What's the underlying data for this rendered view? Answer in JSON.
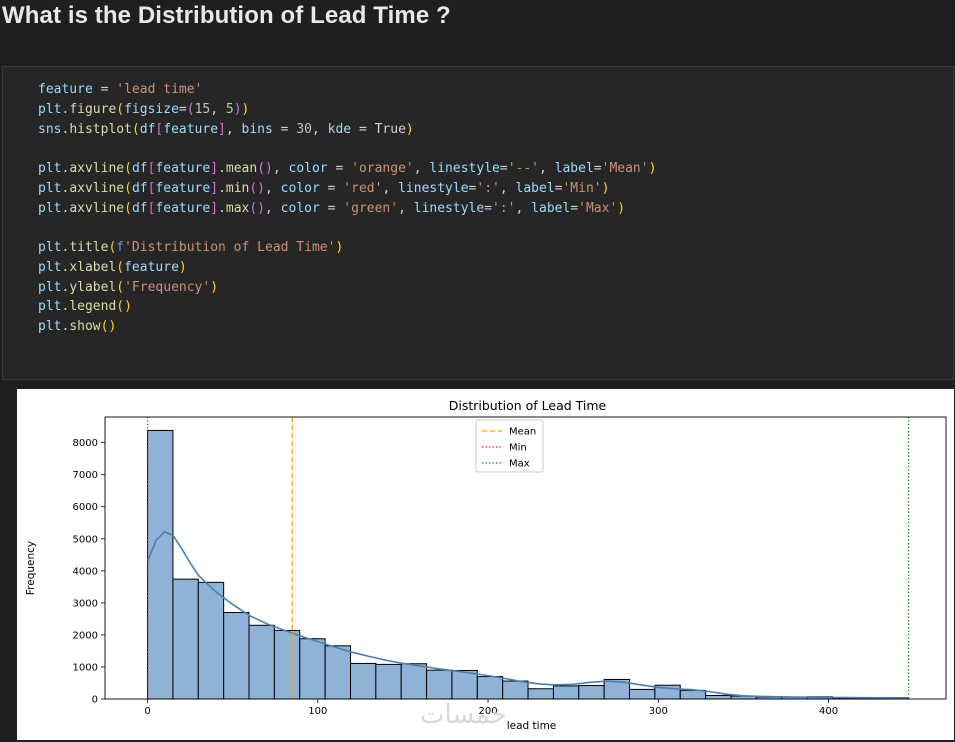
{
  "page": {
    "heading": "What is the Distribution of Lead Time ?",
    "watermark": "خمسات"
  },
  "code_lines": [
    [
      {
        "t": "feature ",
        "c": "#9cdcfe"
      },
      {
        "t": "= ",
        "c": "#d4d4d4"
      },
      {
        "t": "'lead time'",
        "c": "#ce9178"
      }
    ],
    [
      {
        "t": "plt",
        "c": "#9cdcfe"
      },
      {
        "t": ".",
        "c": "#d4d4d4"
      },
      {
        "t": "figure",
        "c": "#dcdcaa"
      },
      {
        "t": "(",
        "c": "#ffd700"
      },
      {
        "t": "figsize",
        "c": "#9cdcfe"
      },
      {
        "t": "=",
        "c": "#d4d4d4"
      },
      {
        "t": "(",
        "c": "#da70d6"
      },
      {
        "t": "15",
        "c": "#b5cea8"
      },
      {
        "t": ", ",
        "c": "#d4d4d4"
      },
      {
        "t": "5",
        "c": "#b5cea8"
      },
      {
        "t": ")",
        "c": "#da70d6"
      },
      {
        "t": ")",
        "c": "#ffd700"
      }
    ],
    [
      {
        "t": "sns",
        "c": "#9cdcfe"
      },
      {
        "t": ".",
        "c": "#d4d4d4"
      },
      {
        "t": "histplot",
        "c": "#dcdcaa"
      },
      {
        "t": "(",
        "c": "#ffd700"
      },
      {
        "t": "df",
        "c": "#9cdcfe"
      },
      {
        "t": "[",
        "c": "#da70d6"
      },
      {
        "t": "feature",
        "c": "#9cdcfe"
      },
      {
        "t": "]",
        "c": "#da70d6"
      },
      {
        "t": ", ",
        "c": "#d4d4d4"
      },
      {
        "t": "bins ",
        "c": "#9cdcfe"
      },
      {
        "t": "= ",
        "c": "#d4d4d4"
      },
      {
        "t": "30",
        "c": "#b5cea8"
      },
      {
        "t": ", ",
        "c": "#d4d4d4"
      },
      {
        "t": "kde ",
        "c": "#9cdcfe"
      },
      {
        "t": "= ",
        "c": "#d4d4d4"
      },
      {
        "t": "True",
        "c": "#d4d4d4"
      },
      {
        "t": ")",
        "c": "#ffd700"
      }
    ],
    [],
    [
      {
        "t": "plt",
        "c": "#9cdcfe"
      },
      {
        "t": ".",
        "c": "#d4d4d4"
      },
      {
        "t": "axvline",
        "c": "#dcdcaa"
      },
      {
        "t": "(",
        "c": "#ffd700"
      },
      {
        "t": "df",
        "c": "#9cdcfe"
      },
      {
        "t": "[",
        "c": "#da70d6"
      },
      {
        "t": "feature",
        "c": "#9cdcfe"
      },
      {
        "t": "]",
        "c": "#da70d6"
      },
      {
        "t": ".",
        "c": "#d4d4d4"
      },
      {
        "t": "mean",
        "c": "#dcdcaa"
      },
      {
        "t": "()",
        "c": "#da70d6"
      },
      {
        "t": ", ",
        "c": "#d4d4d4"
      },
      {
        "t": "color ",
        "c": "#9cdcfe"
      },
      {
        "t": "= ",
        "c": "#d4d4d4"
      },
      {
        "t": "'orange'",
        "c": "#ce9178"
      },
      {
        "t": ", ",
        "c": "#d4d4d4"
      },
      {
        "t": "linestyle",
        "c": "#9cdcfe"
      },
      {
        "t": "=",
        "c": "#d4d4d4"
      },
      {
        "t": "'--'",
        "c": "#ce9178"
      },
      {
        "t": ", ",
        "c": "#d4d4d4"
      },
      {
        "t": "label",
        "c": "#9cdcfe"
      },
      {
        "t": "=",
        "c": "#d4d4d4"
      },
      {
        "t": "'Mean'",
        "c": "#ce9178"
      },
      {
        "t": ")",
        "c": "#ffd700"
      }
    ],
    [
      {
        "t": "plt",
        "c": "#9cdcfe"
      },
      {
        "t": ".",
        "c": "#d4d4d4"
      },
      {
        "t": "axvline",
        "c": "#dcdcaa"
      },
      {
        "t": "(",
        "c": "#ffd700"
      },
      {
        "t": "df",
        "c": "#9cdcfe"
      },
      {
        "t": "[",
        "c": "#da70d6"
      },
      {
        "t": "feature",
        "c": "#9cdcfe"
      },
      {
        "t": "]",
        "c": "#da70d6"
      },
      {
        "t": ".",
        "c": "#d4d4d4"
      },
      {
        "t": "min",
        "c": "#dcdcaa"
      },
      {
        "t": "()",
        "c": "#da70d6"
      },
      {
        "t": ", ",
        "c": "#d4d4d4"
      },
      {
        "t": "color ",
        "c": "#9cdcfe"
      },
      {
        "t": "= ",
        "c": "#d4d4d4"
      },
      {
        "t": "'red'",
        "c": "#ce9178"
      },
      {
        "t": ", ",
        "c": "#d4d4d4"
      },
      {
        "t": "linestyle",
        "c": "#9cdcfe"
      },
      {
        "t": "=",
        "c": "#d4d4d4"
      },
      {
        "t": "':'",
        "c": "#ce9178"
      },
      {
        "t": ", ",
        "c": "#d4d4d4"
      },
      {
        "t": "label",
        "c": "#9cdcfe"
      },
      {
        "t": "=",
        "c": "#d4d4d4"
      },
      {
        "t": "'Min'",
        "c": "#ce9178"
      },
      {
        "t": ")",
        "c": "#ffd700"
      }
    ],
    [
      {
        "t": "plt",
        "c": "#9cdcfe"
      },
      {
        "t": ".",
        "c": "#d4d4d4"
      },
      {
        "t": "axvline",
        "c": "#dcdcaa"
      },
      {
        "t": "(",
        "c": "#ffd700"
      },
      {
        "t": "df",
        "c": "#9cdcfe"
      },
      {
        "t": "[",
        "c": "#da70d6"
      },
      {
        "t": "feature",
        "c": "#9cdcfe"
      },
      {
        "t": "]",
        "c": "#da70d6"
      },
      {
        "t": ".",
        "c": "#d4d4d4"
      },
      {
        "t": "max",
        "c": "#dcdcaa"
      },
      {
        "t": "()",
        "c": "#da70d6"
      },
      {
        "t": ", ",
        "c": "#d4d4d4"
      },
      {
        "t": "color ",
        "c": "#9cdcfe"
      },
      {
        "t": "= ",
        "c": "#d4d4d4"
      },
      {
        "t": "'green'",
        "c": "#ce9178"
      },
      {
        "t": ", ",
        "c": "#d4d4d4"
      },
      {
        "t": "linestyle",
        "c": "#9cdcfe"
      },
      {
        "t": "=",
        "c": "#d4d4d4"
      },
      {
        "t": "':'",
        "c": "#ce9178"
      },
      {
        "t": ", ",
        "c": "#d4d4d4"
      },
      {
        "t": "label",
        "c": "#9cdcfe"
      },
      {
        "t": "=",
        "c": "#d4d4d4"
      },
      {
        "t": "'Max'",
        "c": "#ce9178"
      },
      {
        "t": ")",
        "c": "#ffd700"
      }
    ],
    [],
    [
      {
        "t": "plt",
        "c": "#9cdcfe"
      },
      {
        "t": ".",
        "c": "#d4d4d4"
      },
      {
        "t": "title",
        "c": "#dcdcaa"
      },
      {
        "t": "(",
        "c": "#ffd700"
      },
      {
        "t": "f",
        "c": "#569cd6"
      },
      {
        "t": "'Distribution of Lead Time'",
        "c": "#ce9178"
      },
      {
        "t": ")",
        "c": "#ffd700"
      }
    ],
    [
      {
        "t": "plt",
        "c": "#9cdcfe"
      },
      {
        "t": ".",
        "c": "#d4d4d4"
      },
      {
        "t": "xlabel",
        "c": "#dcdcaa"
      },
      {
        "t": "(",
        "c": "#ffd700"
      },
      {
        "t": "feature",
        "c": "#9cdcfe"
      },
      {
        "t": ")",
        "c": "#ffd700"
      }
    ],
    [
      {
        "t": "plt",
        "c": "#9cdcfe"
      },
      {
        "t": ".",
        "c": "#d4d4d4"
      },
      {
        "t": "ylabel",
        "c": "#dcdcaa"
      },
      {
        "t": "(",
        "c": "#ffd700"
      },
      {
        "t": "'Frequency'",
        "c": "#ce9178"
      },
      {
        "t": ")",
        "c": "#ffd700"
      }
    ],
    [
      {
        "t": "plt",
        "c": "#9cdcfe"
      },
      {
        "t": ".",
        "c": "#d4d4d4"
      },
      {
        "t": "legend",
        "c": "#dcdcaa"
      },
      {
        "t": "()",
        "c": "#ffd700"
      }
    ],
    [
      {
        "t": "plt",
        "c": "#9cdcfe"
      },
      {
        "t": ".",
        "c": "#d4d4d4"
      },
      {
        "t": "show",
        "c": "#dcdcaa"
      },
      {
        "t": "()",
        "c": "#ffd700"
      }
    ]
  ],
  "chart_data": {
    "type": "bar",
    "title": "Distribution of Lead Time",
    "xlabel": "lead time",
    "ylabel": "Frequency",
    "bin_edges": [
      0,
      14.9,
      29.8,
      44.7,
      59.6,
      74.5,
      89.4,
      104.3,
      119.2,
      134.1,
      149,
      163.9,
      178.8,
      193.7,
      208.6,
      223.5,
      238.4,
      253.3,
      268.2,
      283.1,
      298,
      312.9,
      327.8,
      342.7,
      357.6,
      372.5,
      387.4,
      402.3,
      417.2,
      432.1,
      447
    ],
    "values": [
      8380,
      3740,
      3640,
      2700,
      2300,
      2140,
      1880,
      1660,
      1110,
      1080,
      1100,
      900,
      890,
      700,
      560,
      320,
      410,
      420,
      610,
      300,
      430,
      270,
      110,
      90,
      60,
      60,
      70,
      30,
      20,
      40
    ],
    "kde": {
      "x": [
        0,
        5,
        10,
        15,
        20,
        25,
        30,
        40,
        50,
        60,
        70,
        80,
        90,
        100,
        110,
        120,
        130,
        140,
        150,
        160,
        170,
        180,
        190,
        200,
        210,
        220,
        230,
        240,
        250,
        260,
        270,
        280,
        290,
        300,
        310,
        320,
        330,
        340,
        350,
        360,
        380,
        400,
        420,
        447
      ],
      "y": [
        4300,
        4950,
        5220,
        5100,
        4700,
        4250,
        3850,
        3350,
        2950,
        2600,
        2350,
        2150,
        1960,
        1790,
        1620,
        1460,
        1330,
        1210,
        1110,
        1030,
        950,
        880,
        810,
        730,
        640,
        540,
        470,
        440,
        460,
        520,
        560,
        520,
        440,
        360,
        320,
        290,
        230,
        150,
        100,
        80,
        60,
        50,
        40,
        30
      ]
    },
    "vlines": [
      {
        "label": "Mean",
        "x": 85,
        "color": "#ffa500",
        "style": "dashed"
      },
      {
        "label": "Min",
        "x": 0,
        "color": "#ff0000",
        "style": "dotted"
      },
      {
        "label": "Max",
        "x": 447,
        "color": "#008000",
        "style": "dotted"
      }
    ],
    "xticks": [
      0,
      100,
      200,
      300,
      400
    ],
    "yticks": [
      0,
      1000,
      2000,
      3000,
      4000,
      5000,
      6000,
      7000,
      8000
    ],
    "xlim": [
      -25,
      469
    ],
    "ylim": [
      0,
      8800
    ],
    "bar_color": "#8fb3d6",
    "kde_color": "#4a7fb6",
    "legend": {
      "placement": "top-center",
      "items": [
        "Mean",
        "Min",
        "Max"
      ]
    },
    "grid": false
  }
}
